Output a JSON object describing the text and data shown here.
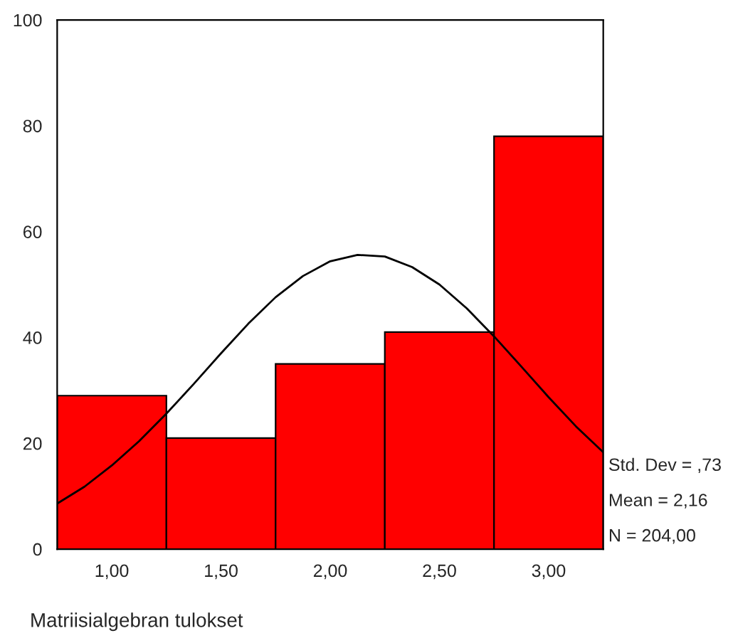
{
  "chart_data": {
    "type": "histogram",
    "xlabel": "Matriisialgebran tulokset",
    "bins": [
      0.75,
      1.25,
      1.75,
      2.25,
      2.75,
      3.25
    ],
    "values": [
      29,
      21,
      35,
      41,
      78
    ],
    "color": "#ff0000",
    "series": [
      {
        "type": "line",
        "color": "#000000",
        "x": [
          0.75,
          0.875,
          1.0,
          1.125,
          1.25,
          1.375,
          1.5,
          1.625,
          1.75,
          1.875,
          2.0,
          2.125,
          2.25,
          2.375,
          2.5,
          2.625,
          2.75,
          2.875,
          3.0,
          3.125,
          3.25
        ],
        "values": [
          8.6,
          11.8,
          15.8,
          20.4,
          25.6,
          31.2,
          37.0,
          42.6,
          47.6,
          51.6,
          54.4,
          55.6,
          55.3,
          53.3,
          50.0,
          45.5,
          40.2,
          34.5,
          28.7,
          23.2,
          18.3
        ]
      }
    ],
    "xlim": [
      0.75,
      3.25
    ],
    "ylim": [
      0,
      100
    ],
    "xticks": [
      {
        "value": 1,
        "label": "1,00"
      },
      {
        "value": 1.5,
        "label": "1,50"
      },
      {
        "value": 2,
        "label": "2,00"
      },
      {
        "value": 2.5,
        "label": "2,50"
      },
      {
        "value": 3,
        "label": "3,00"
      }
    ],
    "yticks": [
      0,
      20,
      40,
      60,
      80,
      100
    ],
    "grid": false,
    "legend": false,
    "annotations": [
      "Std. Dev = ,73",
      "Mean = 2,16",
      "N = 204,00"
    ]
  }
}
